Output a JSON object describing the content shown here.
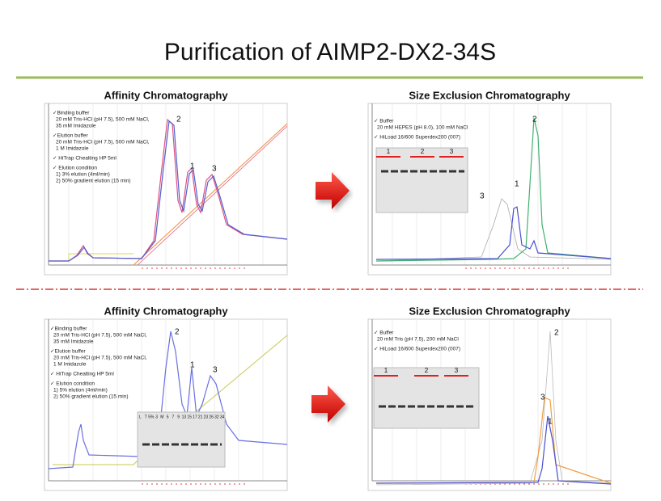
{
  "title": "Purification of AIMP2-DX2-34S",
  "panels": [
    {
      "heading": "Affinity Chromatography",
      "notes": [
        "✓Binding buffer",
        "20 mM Tris-HCl (pH 7.5), 500 mM NaCl,",
        "35 mM Imidazole",
        "✓Elution buffer",
        "20 mM Tris-HCl (pH 7.5), 500 mM NaCl,",
        "1 M Imidazole",
        "✓ HiTrap Chealting HP 5ml",
        "✓ Elution condition",
        "1) 3% elution  (4ml/min)",
        "2) 50% gradient elution (15 min)"
      ],
      "peaks": [
        "1",
        "2",
        "3"
      ]
    },
    {
      "heading": "Size Exclusion Chromatography",
      "notes": [
        "✓ Buffer",
        "20 mM HEPES (pH 8.0), 100 mM NaCl",
        "✓ HiLoad 16/600 Superdex200 (007)"
      ],
      "peaks": [
        "1",
        "2",
        "3"
      ],
      "gel_lanes": [
        "1",
        "2",
        "3"
      ]
    },
    {
      "heading": "Affinity Chromatography",
      "notes": [
        "✓Binding buffer",
        "20 mM Tris-HCl (pH 7.5), 500 mM NaCl,",
        "35 mM Imidazole",
        "✓Elution buffer",
        "20 mM Tris-HCl (pH 7.5), 500 mM NaCl,",
        "1 M Imidazole",
        "✓ HiTrap Chealting HP 5ml",
        "✓ Elution condition",
        "1) 5% elution  (4ml/min)",
        "2) 50% gradient elution (15 min)"
      ],
      "peaks": [
        "1",
        "2",
        "3"
      ],
      "gel_lanes": [
        "L",
        "T",
        "5%",
        "3",
        "M",
        "5",
        "7",
        "9",
        "13",
        "15",
        "17",
        "21",
        "23",
        "26",
        "32",
        "34"
      ]
    },
    {
      "heading": "Size Exclusion Chromatography",
      "notes": [
        "✓ Buffer",
        "20 mM Tris (pH 7.5), 200 mM NaCl",
        "✓ HiLoad 16/600 Superdex200 (007)"
      ],
      "peaks": [
        "1",
        "2",
        "3"
      ],
      "gel_lanes": [
        "1",
        "2",
        "3"
      ]
    }
  ]
}
